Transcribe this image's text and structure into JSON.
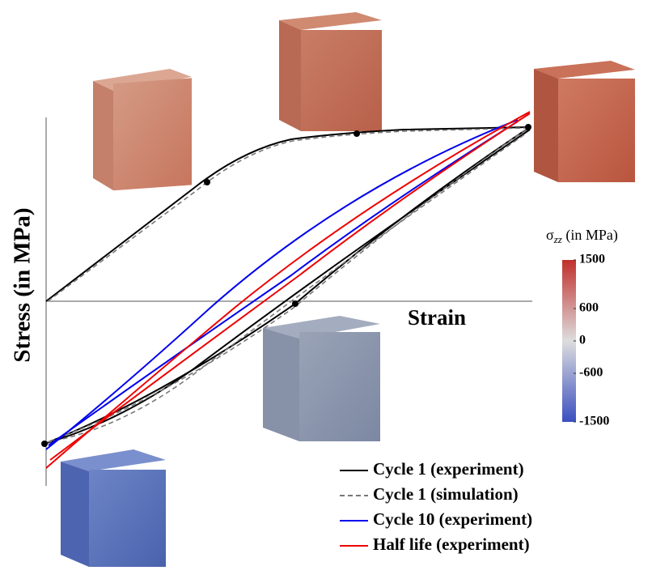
{
  "chart_data": {
    "type": "line",
    "xlabel": "Strain",
    "ylabel": "Stress (in MPa)",
    "series": [
      {
        "name": "Cycle 1 (experiment)",
        "color": "#000000",
        "dash": "solid"
      },
      {
        "name": "Cycle 1 (simulation)",
        "color": "#777777",
        "dash": "dashed"
      },
      {
        "name": "Cycle 10 (experiment)",
        "color": "#0000ee",
        "dash": "solid"
      },
      {
        "name": "Half life (experiment)",
        "color": "#ee0000",
        "dash": "solid"
      }
    ],
    "colorbar": {
      "symbol": "σ",
      "subscript": "zz",
      "unit": "(in MPa)",
      "lim": [
        -1500,
        1500
      ],
      "ticks": [
        1500,
        600,
        0,
        -600,
        -1500
      ],
      "colors": [
        "#3a4fc0",
        "#dddddd",
        "#c0302c"
      ]
    }
  }
}
